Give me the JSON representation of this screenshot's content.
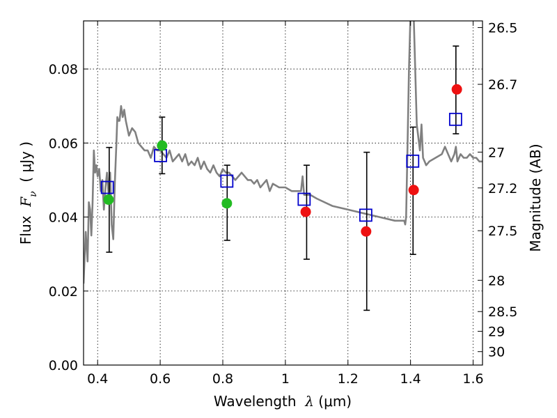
{
  "chart_data": {
    "type": "scatter",
    "xlabel": {
      "pre": "Wavelength  ",
      "sym": "λ",
      "post": " (μm)"
    },
    "ylabel": {
      "pre": "Flux  ",
      "sym": "F",
      "sub": "ν",
      "post": "  ( μJy )"
    },
    "ylabel_right": "Magnitude (AB)",
    "xlim": [
      0.355,
      1.63
    ],
    "ylim": [
      0.0,
      0.093
    ],
    "grid": true,
    "x_ticks": [
      0.4,
      0.6,
      0.8,
      1.0,
      1.2,
      1.4,
      1.6
    ],
    "x_tick_labels": [
      "0.4",
      "0.6",
      "0.8",
      "1",
      "1.2",
      "1.4",
      "1.6"
    ],
    "y_ticks": [
      0.0,
      0.02,
      0.04,
      0.06,
      0.08
    ],
    "y_tick_labels": [
      "0.00",
      "0.02",
      "0.04",
      "0.06",
      "0.08"
    ],
    "right_ticks": [
      {
        "label": "26.5",
        "mag": 26.5
      },
      {
        "label": "26.7",
        "mag": 26.7
      },
      {
        "label": "27",
        "mag": 27.0
      },
      {
        "label": "27.2",
        "mag": 27.2
      },
      {
        "label": "27.5",
        "mag": 27.5
      },
      {
        "label": "28",
        "mag": 28.0
      },
      {
        "label": "28.5",
        "mag": 28.5
      },
      {
        "label": "29",
        "mag": 29.0
      },
      {
        "label": "30",
        "mag": 30.0
      }
    ],
    "colors": {
      "model": "#808080",
      "green": "#22bb22",
      "red": "#ee1111",
      "box": "#0000cc",
      "errorbar": "#000000",
      "grid": "#000000"
    },
    "series": [
      {
        "kind": "error-bars",
        "points": [
          {
            "x": 0.437,
            "lo": 0.0305,
            "hi": 0.0588
          },
          {
            "x": 0.606,
            "lo": 0.0517,
            "hi": 0.067
          },
          {
            "x": 0.814,
            "lo": 0.0337,
            "hi": 0.054
          },
          {
            "x": 1.068,
            "lo": 0.0286,
            "hi": 0.054
          },
          {
            "x": 1.26,
            "lo": 0.0148,
            "hi": 0.0575
          },
          {
            "x": 1.408,
            "lo": 0.0299,
            "hi": 0.0643
          },
          {
            "x": 1.545,
            "lo": 0.0625,
            "hi": 0.0862
          }
        ]
      },
      {
        "kind": "model-boxes",
        "points": [
          {
            "x": 0.431,
            "y": 0.048
          },
          {
            "x": 0.601,
            "y": 0.0566
          },
          {
            "x": 0.813,
            "y": 0.0497
          },
          {
            "x": 1.06,
            "y": 0.0448
          },
          {
            "x": 1.257,
            "y": 0.0405
          },
          {
            "x": 1.407,
            "y": 0.0551
          },
          {
            "x": 1.544,
            "y": 0.0664
          }
        ]
      },
      {
        "kind": "detections",
        "color": "green",
        "points": [
          {
            "x": 0.435,
            "y": 0.0447
          },
          {
            "x": 0.606,
            "y": 0.0593
          },
          {
            "x": 0.813,
            "y": 0.0437
          }
        ]
      },
      {
        "kind": "detections",
        "color": "red",
        "points": [
          {
            "x": 1.065,
            "y": 0.0414
          },
          {
            "x": 1.258,
            "y": 0.0361
          },
          {
            "x": 1.41,
            "y": 0.0473
          },
          {
            "x": 1.548,
            "y": 0.0745
          }
        ]
      },
      {
        "kind": "model-spectrum",
        "x": [
          0.355,
          0.362,
          0.368,
          0.372,
          0.376,
          0.38,
          0.384,
          0.388,
          0.392,
          0.396,
          0.4,
          0.405,
          0.41,
          0.415,
          0.42,
          0.425,
          0.43,
          0.435,
          0.44,
          0.445,
          0.45,
          0.455,
          0.46,
          0.463,
          0.466,
          0.47,
          0.475,
          0.48,
          0.485,
          0.49,
          0.5,
          0.51,
          0.52,
          0.53,
          0.54,
          0.55,
          0.56,
          0.57,
          0.58,
          0.59,
          0.6,
          0.61,
          0.62,
          0.63,
          0.64,
          0.65,
          0.66,
          0.67,
          0.68,
          0.69,
          0.7,
          0.71,
          0.72,
          0.73,
          0.74,
          0.75,
          0.76,
          0.77,
          0.78,
          0.79,
          0.8,
          0.81,
          0.82,
          0.83,
          0.84,
          0.85,
          0.86,
          0.87,
          0.88,
          0.89,
          0.9,
          0.91,
          0.92,
          0.93,
          0.94,
          0.95,
          0.96,
          0.98,
          1.0,
          1.02,
          1.04,
          1.05,
          1.055,
          1.06,
          1.07,
          1.08,
          1.1,
          1.15,
          1.2,
          1.25,
          1.3,
          1.35,
          1.38,
          1.383,
          1.386,
          1.39,
          1.395,
          1.4,
          1.41,
          1.42,
          1.43,
          1.435,
          1.44,
          1.445,
          1.45,
          1.46,
          1.48,
          1.5,
          1.51,
          1.52,
          1.53,
          1.54,
          1.545,
          1.55,
          1.56,
          1.57,
          1.58,
          1.59,
          1.6,
          1.61,
          1.62,
          1.63
        ],
        "y": [
          0.022,
          0.036,
          0.028,
          0.044,
          0.042,
          0.035,
          0.044,
          0.058,
          0.052,
          0.054,
          0.051,
          0.053,
          0.047,
          0.05,
          0.042,
          0.048,
          0.052,
          0.046,
          0.052,
          0.038,
          0.034,
          0.049,
          0.06,
          0.067,
          0.066,
          0.066,
          0.07,
          0.067,
          0.069,
          0.066,
          0.062,
          0.064,
          0.063,
          0.06,
          0.059,
          0.058,
          0.058,
          0.056,
          0.059,
          0.058,
          0.058,
          0.057,
          0.056,
          0.058,
          0.055,
          0.056,
          0.057,
          0.055,
          0.057,
          0.054,
          0.055,
          0.054,
          0.056,
          0.053,
          0.055,
          0.053,
          0.052,
          0.054,
          0.052,
          0.051,
          0.053,
          0.052,
          0.052,
          0.051,
          0.05,
          0.051,
          0.052,
          0.051,
          0.05,
          0.05,
          0.049,
          0.05,
          0.048,
          0.049,
          0.05,
          0.047,
          0.049,
          0.048,
          0.048,
          0.047,
          0.047,
          0.047,
          0.051,
          0.046,
          0.046,
          0.046,
          0.045,
          0.043,
          0.042,
          0.041,
          0.04,
          0.039,
          0.039,
          0.038,
          0.04,
          0.057,
          0.08,
          0.095,
          0.095,
          0.065,
          0.058,
          0.065,
          0.056,
          0.055,
          0.054,
          0.055,
          0.056,
          0.057,
          0.059,
          0.057,
          0.055,
          0.057,
          0.059,
          0.055,
          0.057,
          0.056,
          0.056,
          0.057,
          0.056,
          0.056,
          0.055,
          0.055
        ]
      }
    ]
  }
}
